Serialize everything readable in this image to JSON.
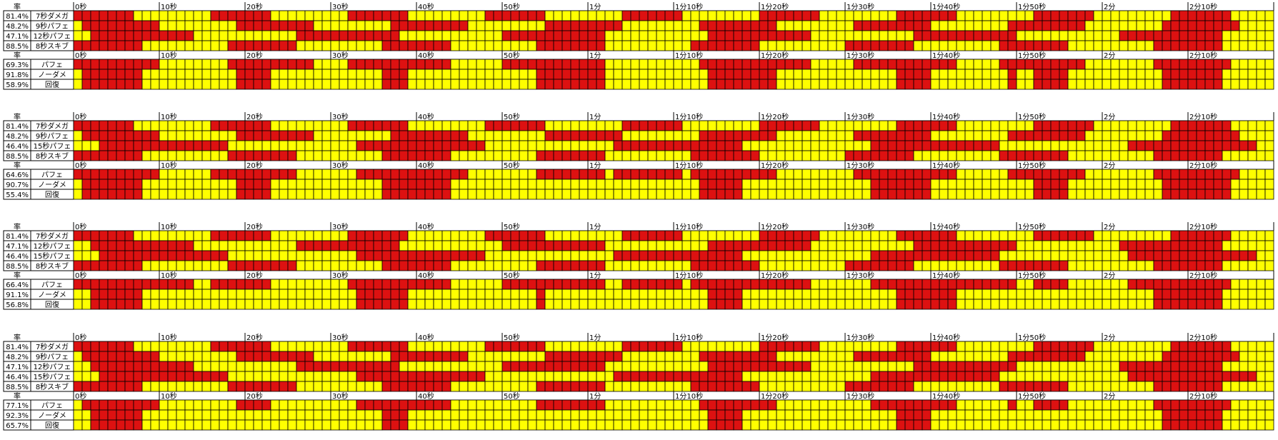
{
  "chart_data": [
    {
      "type": "heatmap",
      "rate_header": "率",
      "time_ticks": [
        "0秒",
        "10秒",
        "20秒",
        "30秒",
        "40秒",
        "50秒",
        "1分",
        "1分10秒",
        "1分20秒",
        "1分30秒",
        "1分40秒",
        "1分50秒",
        "2分",
        "2分10秒"
      ],
      "skills": [
        {
          "rate": "81.4%",
          "name": "7秒ダメガ",
          "period": 8,
          "duration": 7,
          "offset": 0
        },
        {
          "rate": "48.2%",
          "name": "9秒パフェ",
          "period": 9,
          "duration": 9,
          "offset": 1
        },
        {
          "rate": "47.1%",
          "name": "12秒パフェ",
          "period": 12,
          "duration": 12,
          "offset": 2
        },
        {
          "rate": "88.5%",
          "name": "8秒スキブ",
          "period": 9,
          "duration": 8,
          "offset": 0
        }
      ],
      "summary": [
        {
          "rate": "69.3%",
          "name": "パフェ"
        },
        {
          "rate": "91.8%",
          "name": "ノーダメ"
        },
        {
          "rate": "58.9%",
          "name": "回復"
        }
      ]
    },
    {
      "type": "heatmap",
      "rate_header": "率",
      "time_ticks": [
        "0秒",
        "10秒",
        "20秒",
        "30秒",
        "40秒",
        "50秒",
        "1分",
        "1分10秒",
        "1分20秒",
        "1分30秒",
        "1分40秒",
        "1分50秒",
        "2分",
        "2分10秒"
      ],
      "skills": [
        {
          "rate": "81.4%",
          "name": "7秒ダメガ",
          "period": 8,
          "duration": 7,
          "offset": 0
        },
        {
          "rate": "48.2%",
          "name": "9秒パフェ",
          "period": 9,
          "duration": 9,
          "offset": 1
        },
        {
          "rate": "46.4%",
          "name": "15秒パフェ",
          "period": 15,
          "duration": 15,
          "offset": 3
        },
        {
          "rate": "88.5%",
          "name": "8秒スキブ",
          "period": 9,
          "duration": 8,
          "offset": 0
        }
      ],
      "summary": [
        {
          "rate": "64.6%",
          "name": "パフェ"
        },
        {
          "rate": "90.7%",
          "name": "ノーダメ"
        },
        {
          "rate": "55.4%",
          "name": "回復"
        }
      ]
    },
    {
      "type": "heatmap",
      "rate_header": "率",
      "time_ticks": [
        "0秒",
        "10秒",
        "20秒",
        "30秒",
        "40秒",
        "50秒",
        "1分",
        "1分10秒",
        "1分20秒",
        "1分30秒",
        "1分40秒",
        "1分50秒",
        "2分",
        "2分10秒"
      ],
      "skills": [
        {
          "rate": "81.4%",
          "name": "7秒ダメガ",
          "period": 8,
          "duration": 7,
          "offset": 0
        },
        {
          "rate": "47.1%",
          "name": "12秒パフェ",
          "period": 12,
          "duration": 12,
          "offset": 2
        },
        {
          "rate": "46.4%",
          "name": "15秒パフェ",
          "period": 15,
          "duration": 15,
          "offset": 3
        },
        {
          "rate": "88.5%",
          "name": "8秒スキブ",
          "period": 9,
          "duration": 8,
          "offset": 0
        }
      ],
      "summary": [
        {
          "rate": "66.4%",
          "name": "パフェ"
        },
        {
          "rate": "91.1%",
          "name": "ノーダメ"
        },
        {
          "rate": "56.8%",
          "name": "回復"
        }
      ]
    },
    {
      "type": "heatmap",
      "rate_header": "率",
      "time_ticks": [
        "0秒",
        "10秒",
        "20秒",
        "30秒",
        "40秒",
        "50秒",
        "1分",
        "1分10秒",
        "1分20秒",
        "1分30秒",
        "1分40秒",
        "1分50秒",
        "2分",
        "2分10秒"
      ],
      "skills": [
        {
          "rate": "81.4%",
          "name": "7秒ダメガ",
          "period": 8,
          "duration": 7,
          "offset": 0
        },
        {
          "rate": "48.2%",
          "name": "9秒パフェ",
          "period": 9,
          "duration": 9,
          "offset": 1
        },
        {
          "rate": "47.1%",
          "name": "12秒パフェ",
          "period": 12,
          "duration": 12,
          "offset": 2
        },
        {
          "rate": "46.4%",
          "name": "15秒パフェ",
          "period": 15,
          "duration": 15,
          "offset": 3
        },
        {
          "rate": "88.5%",
          "name": "8秒スキブ",
          "period": 9,
          "duration": 8,
          "offset": 0
        }
      ],
      "summary": [
        {
          "rate": "77.1%",
          "name": "パフェ"
        },
        {
          "rate": "92.3%",
          "name": "ノーダメ"
        },
        {
          "rate": "65.7%",
          "name": "回復"
        }
      ]
    }
  ],
  "colors": {
    "active": "#dd1111",
    "inactive": "#ffff00",
    "grid": "#000000"
  }
}
